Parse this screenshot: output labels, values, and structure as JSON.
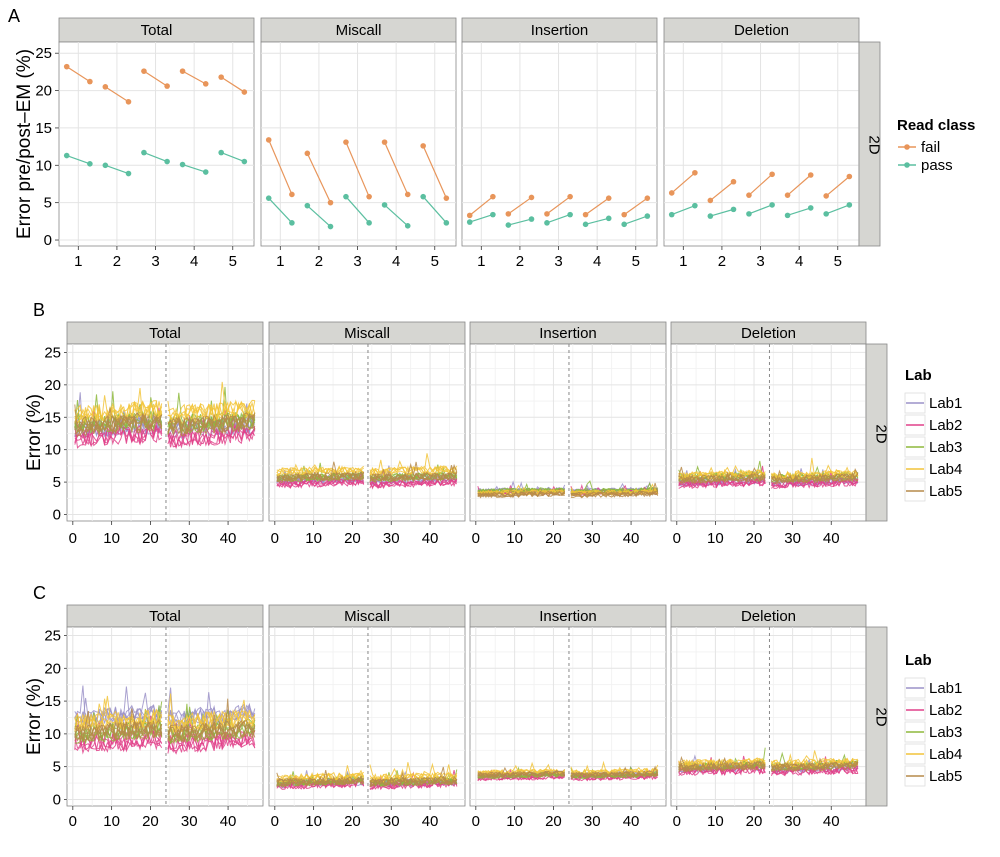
{
  "colors": {
    "fail": "#e8955a",
    "pass": "#5bbfa0",
    "Lab1": "#9b92c8",
    "Lab2": "#e0418a",
    "Lab3": "#8db83b",
    "Lab4": "#f2c43a",
    "Lab5": "#b68a4a",
    "strip_bg": "#d6d6d2",
    "grid": "#e4e4e4",
    "grid_minor": "#f1f1f1",
    "vline": "#888888"
  },
  "chart_data": [
    {
      "type": "line",
      "panel_label": "A",
      "facets": [
        "Total",
        "Miscall",
        "Insertion",
        "Deletion"
      ],
      "row_strip": "2D",
      "ylabel": "Error pre/post–EM (%)",
      "xlabel": "",
      "x_ticks": [
        "1",
        "2",
        "3",
        "4",
        "5"
      ],
      "y_ticks": [
        "0",
        "5",
        "10",
        "15",
        "20",
        "25"
      ],
      "ylim": [
        -0.8,
        26.5
      ],
      "legend_title": "Read class",
      "legend_position": "right",
      "series": [
        {
          "name": "fail",
          "facet_values": [
            [
              [
                23.2,
                21.2
              ],
              [
                20.5,
                18.5
              ],
              [
                22.6,
                20.6
              ],
              [
                22.6,
                20.9
              ],
              [
                21.8,
                19.8
              ]
            ],
            [
              [
                13.4,
                6.1
              ],
              [
                11.6,
                5.0
              ],
              [
                13.1,
                5.8
              ],
              [
                13.1,
                6.1
              ],
              [
                12.6,
                5.6
              ]
            ],
            [
              [
                3.3,
                5.8
              ],
              [
                3.5,
                5.7
              ],
              [
                3.5,
                5.8
              ],
              [
                3.4,
                5.6
              ],
              [
                3.4,
                5.6
              ]
            ],
            [
              [
                6.3,
                9.0
              ],
              [
                5.3,
                7.8
              ],
              [
                6.0,
                8.8
              ],
              [
                6.0,
                8.7
              ],
              [
                5.9,
                8.5
              ]
            ]
          ]
        },
        {
          "name": "pass",
          "facet_values": [
            [
              [
                11.3,
                10.2
              ],
              [
                10.0,
                8.9
              ],
              [
                11.7,
                10.5
              ],
              [
                10.1,
                9.1
              ],
              [
                11.7,
                10.5
              ]
            ],
            [
              [
                5.6,
                2.3
              ],
              [
                4.6,
                1.8
              ],
              [
                5.8,
                2.3
              ],
              [
                4.7,
                1.9
              ],
              [
                5.8,
                2.3
              ]
            ],
            [
              [
                2.4,
                3.4
              ],
              [
                2.0,
                2.8
              ],
              [
                2.3,
                3.4
              ],
              [
                2.1,
                2.9
              ],
              [
                2.1,
                3.2
              ]
            ],
            [
              [
                3.4,
                4.6
              ],
              [
                3.2,
                4.1
              ],
              [
                3.5,
                4.7
              ],
              [
                3.3,
                4.3
              ],
              [
                3.5,
                4.7
              ]
            ]
          ]
        }
      ]
    },
    {
      "type": "line",
      "panel_label": "B",
      "facets": [
        "Total",
        "Miscall",
        "Insertion",
        "Deletion"
      ],
      "row_strip": "2D",
      "ylabel": "Error (%)",
      "xlabel": "",
      "x_ticks": [
        "0",
        "10",
        "20",
        "30",
        "40"
      ],
      "y_ticks": [
        "0",
        "5",
        "10",
        "15",
        "20",
        "25"
      ],
      "xlim": [
        -1.5,
        49
      ],
      "ylim": [
        -1.0,
        26.3
      ],
      "vline_x": 24,
      "legend_title": "Lab",
      "legend_position": "right",
      "series_names": [
        "Lab1",
        "Lab2",
        "Lab3",
        "Lab4",
        "Lab5"
      ],
      "facet_means": {
        "Total": {
          "Lab1": 14.0,
          "Lab2": 12.5,
          "Lab3": 14.5,
          "Lab4": 16.0,
          "Lab5": 14.0
        },
        "Miscall": {
          "Lab1": 5.2,
          "Lab2": 4.6,
          "Lab3": 5.5,
          "Lab4": 6.4,
          "Lab5": 5.4
        },
        "Insertion": {
          "Lab1": 3.3,
          "Lab2": 3.0,
          "Lab3": 3.2,
          "Lab4": 3.6,
          "Lab5": 3.3
        },
        "Deletion": {
          "Lab1": 5.2,
          "Lab2": 4.8,
          "Lab3": 5.8,
          "Lab4": 6.0,
          "Lab5": 5.4
        }
      }
    },
    {
      "type": "line",
      "panel_label": "C",
      "facets": [
        "Total",
        "Miscall",
        "Insertion",
        "Deletion"
      ],
      "row_strip": "2D",
      "ylabel": "Error (%)",
      "xlabel": "",
      "x_ticks": [
        "0",
        "10",
        "20",
        "30",
        "40"
      ],
      "y_ticks": [
        "0",
        "5",
        "10",
        "15",
        "20",
        "25"
      ],
      "xlim": [
        -1.5,
        49
      ],
      "ylim": [
        -1.0,
        26.3
      ],
      "vline_x": 24,
      "legend_title": "Lab",
      "legend_position": "right",
      "series_names": [
        "Lab1",
        "Lab2",
        "Lab3",
        "Lab4",
        "Lab5"
      ],
      "facet_means": {
        "Total": {
          "Lab1": 11.0,
          "Lab2": 9.5,
          "Lab3": 11.0,
          "Lab4": 12.5,
          "Lab5": 10.8
        },
        "Miscall": {
          "Lab1": 2.5,
          "Lab2": 2.2,
          "Lab3": 2.6,
          "Lab4": 3.2,
          "Lab5": 2.5
        },
        "Insertion": {
          "Lab1": 3.5,
          "Lab2": 3.0,
          "Lab3": 3.3,
          "Lab4": 3.8,
          "Lab5": 3.4
        },
        "Deletion": {
          "Lab1": 5.0,
          "Lab2": 4.5,
          "Lab3": 5.3,
          "Lab4": 5.6,
          "Lab5": 5.0
        }
      }
    }
  ]
}
